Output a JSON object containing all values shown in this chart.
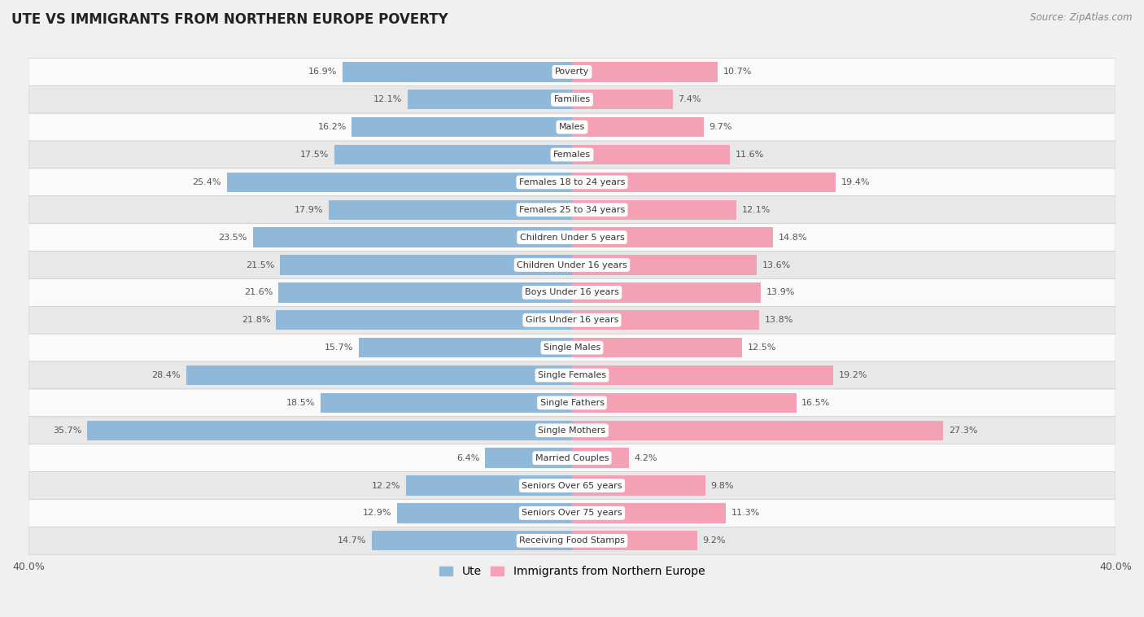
{
  "title": "UTE VS IMMIGRANTS FROM NORTHERN EUROPE POVERTY",
  "source": "Source: ZipAtlas.com",
  "categories": [
    "Poverty",
    "Families",
    "Males",
    "Females",
    "Females 18 to 24 years",
    "Females 25 to 34 years",
    "Children Under 5 years",
    "Children Under 16 years",
    "Boys Under 16 years",
    "Girls Under 16 years",
    "Single Males",
    "Single Females",
    "Single Fathers",
    "Single Mothers",
    "Married Couples",
    "Seniors Over 65 years",
    "Seniors Over 75 years",
    "Receiving Food Stamps"
  ],
  "ute_values": [
    16.9,
    12.1,
    16.2,
    17.5,
    25.4,
    17.9,
    23.5,
    21.5,
    21.6,
    21.8,
    15.7,
    28.4,
    18.5,
    35.7,
    6.4,
    12.2,
    12.9,
    14.7
  ],
  "imm_values": [
    10.7,
    7.4,
    9.7,
    11.6,
    19.4,
    12.1,
    14.8,
    13.6,
    13.9,
    13.8,
    12.5,
    19.2,
    16.5,
    27.3,
    4.2,
    9.8,
    11.3,
    9.2
  ],
  "ute_color": "#90b8d8",
  "imm_color": "#f4a0b5",
  "background_color": "#f0f0f0",
  "row_colors": [
    "#fafafa",
    "#e8e8e8"
  ],
  "xlim": 40.0,
  "legend_ute": "Ute",
  "legend_imm": "Immigrants from Northern Europe",
  "title_fontsize": 12,
  "source_fontsize": 8.5
}
